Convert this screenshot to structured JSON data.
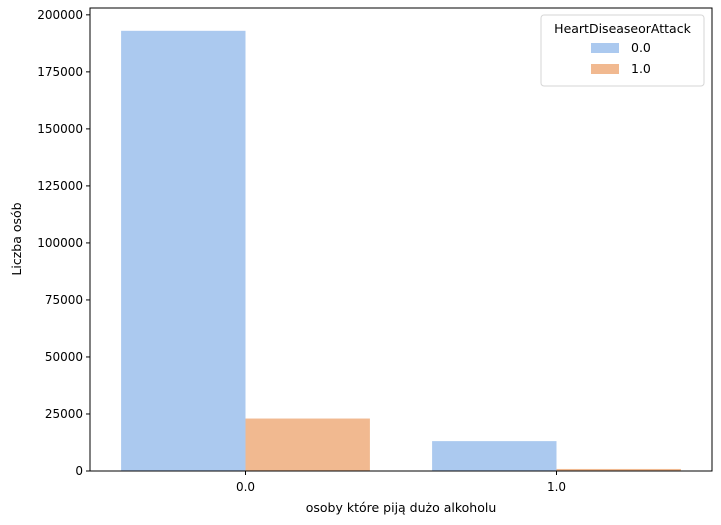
{
  "chart_data": {
    "type": "bar",
    "title": "",
    "xlabel": "osoby które piją dużo alkoholu",
    "ylabel": "Liczba osób",
    "categories": [
      "0.0",
      "1.0"
    ],
    "series": [
      {
        "name": "0.0",
        "values": [
          193000,
          13100
        ],
        "color": "#abc9ef"
      },
      {
        "name": "1.0",
        "values": [
          23000,
          900
        ],
        "color": "#f1b990"
      }
    ],
    "ylim": [
      0,
      203000
    ],
    "yticks": [
      0,
      25000,
      50000,
      75000,
      100000,
      125000,
      150000,
      175000,
      200000
    ],
    "legend": {
      "title": "HeartDiseaseorAttack",
      "placement": "top-right"
    },
    "grid": false
  }
}
